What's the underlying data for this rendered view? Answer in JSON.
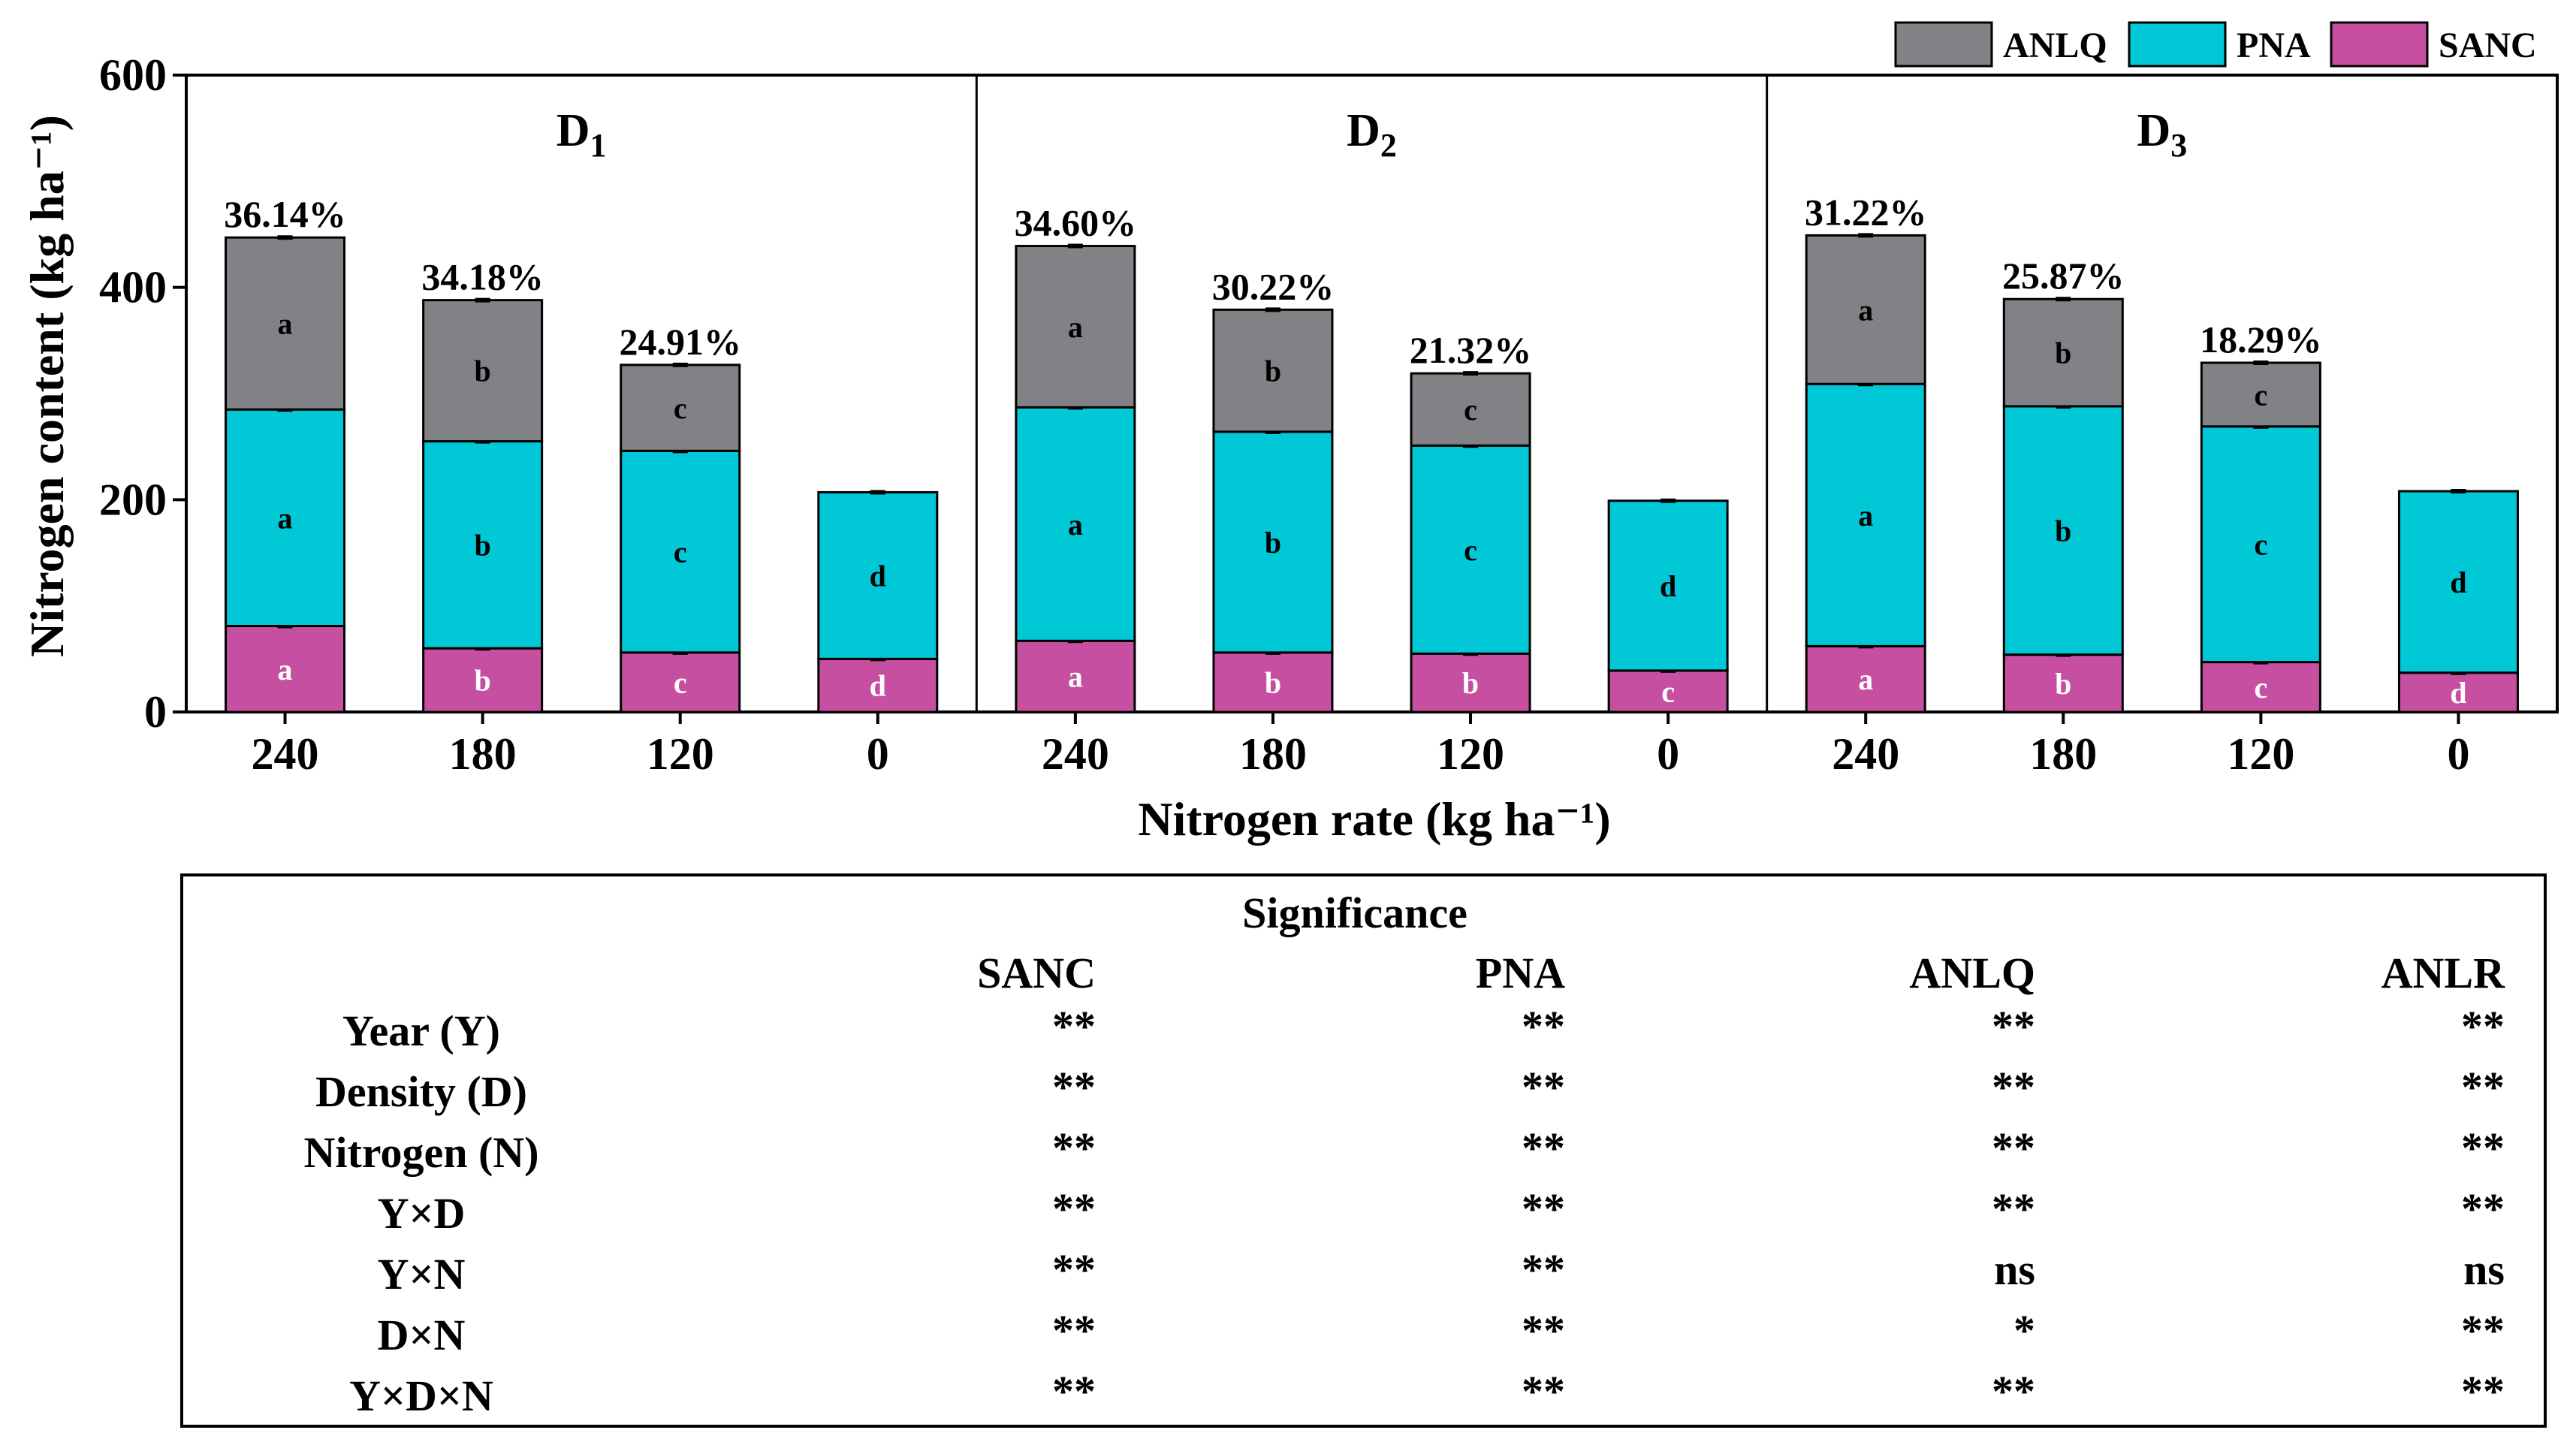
{
  "chart_data": {
    "type": "bar",
    "stacked": true,
    "ylabel": "Nitrogen content (kg ha⁻¹)",
    "xlabel": "Nitrogen rate (kg ha⁻¹)",
    "ylim": [
      0,
      600
    ],
    "yticks": [
      "0",
      "200",
      "400",
      "600"
    ],
    "categories": [
      "240",
      "180",
      "120",
      "0"
    ],
    "legend": {
      "position": "top-right",
      "entries": [
        {
          "name": "ANLQ",
          "color": "#808285"
        },
        {
          "name": "PNA",
          "color": "#00C8D7"
        },
        {
          "name": "SANC",
          "color": "#C64FA2"
        }
      ]
    },
    "series_order": [
      "SANC",
      "PNA",
      "ANLQ"
    ],
    "panels": [
      {
        "title": "D",
        "sub": "1",
        "bars": [
          {
            "SANC": 81,
            "PNA": 204,
            "ANLQ": 162,
            "total": 447,
            "pct": "36.14%",
            "letters": {
              "SANC": "a",
              "PNA": "a",
              "ANLQ": "a"
            }
          },
          {
            "SANC": 60,
            "PNA": 195,
            "ANLQ": 133,
            "total": 388,
            "pct": "34.18%",
            "letters": {
              "SANC": "b",
              "PNA": "b",
              "ANLQ": "b"
            }
          },
          {
            "SANC": 56,
            "PNA": 190,
            "ANLQ": 81,
            "total": 327,
            "pct": "24.91%",
            "letters": {
              "SANC": "c",
              "PNA": "c",
              "ANLQ": "c"
            }
          },
          {
            "SANC": 50,
            "PNA": 157,
            "ANLQ": 0,
            "total": 207,
            "pct": "",
            "letters": {
              "SANC": "d",
              "PNA": "d",
              "ANLQ": ""
            }
          }
        ]
      },
      {
        "title": "D",
        "sub": "2",
        "bars": [
          {
            "SANC": 67,
            "PNA": 220,
            "ANLQ": 152,
            "total": 439,
            "pct": "34.60%",
            "letters": {
              "SANC": "a",
              "PNA": "a",
              "ANLQ": "a"
            }
          },
          {
            "SANC": 56,
            "PNA": 208,
            "ANLQ": 115,
            "total": 379,
            "pct": "30.22%",
            "letters": {
              "SANC": "b",
              "PNA": "b",
              "ANLQ": "b"
            }
          },
          {
            "SANC": 55,
            "PNA": 196,
            "ANLQ": 68,
            "total": 319,
            "pct": "21.32%",
            "letters": {
              "SANC": "b",
              "PNA": "c",
              "ANLQ": "c"
            }
          },
          {
            "SANC": 39,
            "PNA": 160,
            "ANLQ": 0,
            "total": 199,
            "pct": "",
            "letters": {
              "SANC": "c",
              "PNA": "d",
              "ANLQ": ""
            }
          }
        ]
      },
      {
        "title": "D",
        "sub": "3",
        "bars": [
          {
            "SANC": 62,
            "PNA": 247,
            "ANLQ": 140,
            "total": 449,
            "pct": "31.22%",
            "letters": {
              "SANC": "a",
              "PNA": "a",
              "ANLQ": "a"
            }
          },
          {
            "SANC": 54,
            "PNA": 234,
            "ANLQ": 101,
            "total": 389,
            "pct": "25.87%",
            "letters": {
              "SANC": "b",
              "PNA": "b",
              "ANLQ": "b"
            }
          },
          {
            "SANC": 47,
            "PNA": 222,
            "ANLQ": 60,
            "total": 329,
            "pct": "18.29%",
            "letters": {
              "SANC": "c",
              "PNA": "c",
              "ANLQ": "c"
            }
          },
          {
            "SANC": 37,
            "PNA": 171,
            "ANLQ": 0,
            "total": 208,
            "pct": "",
            "letters": {
              "SANC": "d",
              "PNA": "d",
              "ANLQ": ""
            }
          }
        ]
      }
    ]
  },
  "significance": {
    "title": "Significance",
    "columns": [
      "SANC",
      "PNA",
      "ANLQ",
      "ANLR"
    ],
    "rows": [
      {
        "label": "Year (Y)",
        "values": [
          "**",
          "**",
          "**",
          "**"
        ]
      },
      {
        "label": "Density (D)",
        "values": [
          "**",
          "**",
          "**",
          "**"
        ]
      },
      {
        "label": "Nitrogen (N)",
        "values": [
          "**",
          "**",
          "**",
          "**"
        ]
      },
      {
        "label": "Y×D",
        "values": [
          "**",
          "**",
          "**",
          "**"
        ]
      },
      {
        "label": "Y×N",
        "values": [
          "**",
          "**",
          "ns",
          "ns"
        ]
      },
      {
        "label": "D×N",
        "values": [
          "**",
          "**",
          "*",
          "**"
        ]
      },
      {
        "label": "Y×D×N",
        "values": [
          "**",
          "**",
          "**",
          "**"
        ]
      }
    ]
  }
}
